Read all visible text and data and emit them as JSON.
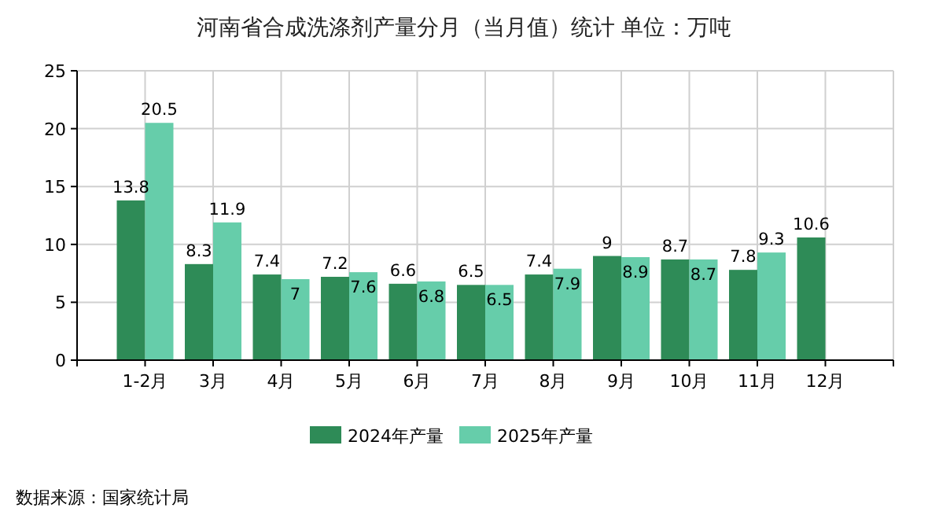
{
  "chart_data": {
    "type": "bar",
    "title": "河南省合成洗涤剂产量分月（当月值）统计  单位：万吨",
    "categories": [
      "1-2月",
      "3月",
      "4月",
      "5月",
      "6月",
      "7月",
      "8月",
      "9月",
      "10月",
      "11月",
      "12月"
    ],
    "series": [
      {
        "name": "2024年产量",
        "color": "#2e8b57",
        "values": [
          13.8,
          8.3,
          7.4,
          7.2,
          6.6,
          6.5,
          7.4,
          9,
          8.7,
          7.8,
          10.6
        ]
      },
      {
        "name": "2025年产量",
        "color": "#66cdaa",
        "values": [
          20.5,
          11.9,
          7,
          7.6,
          6.8,
          6.5,
          7.9,
          8.9,
          8.7,
          9.3,
          null
        ]
      }
    ],
    "ylim": [
      0,
      25
    ],
    "yticks": [
      0,
      5,
      10,
      15,
      20,
      25
    ],
    "grid": true,
    "legend": "bottom",
    "data_labels": true,
    "annotations": [
      "数据来源：国家统计局"
    ]
  }
}
